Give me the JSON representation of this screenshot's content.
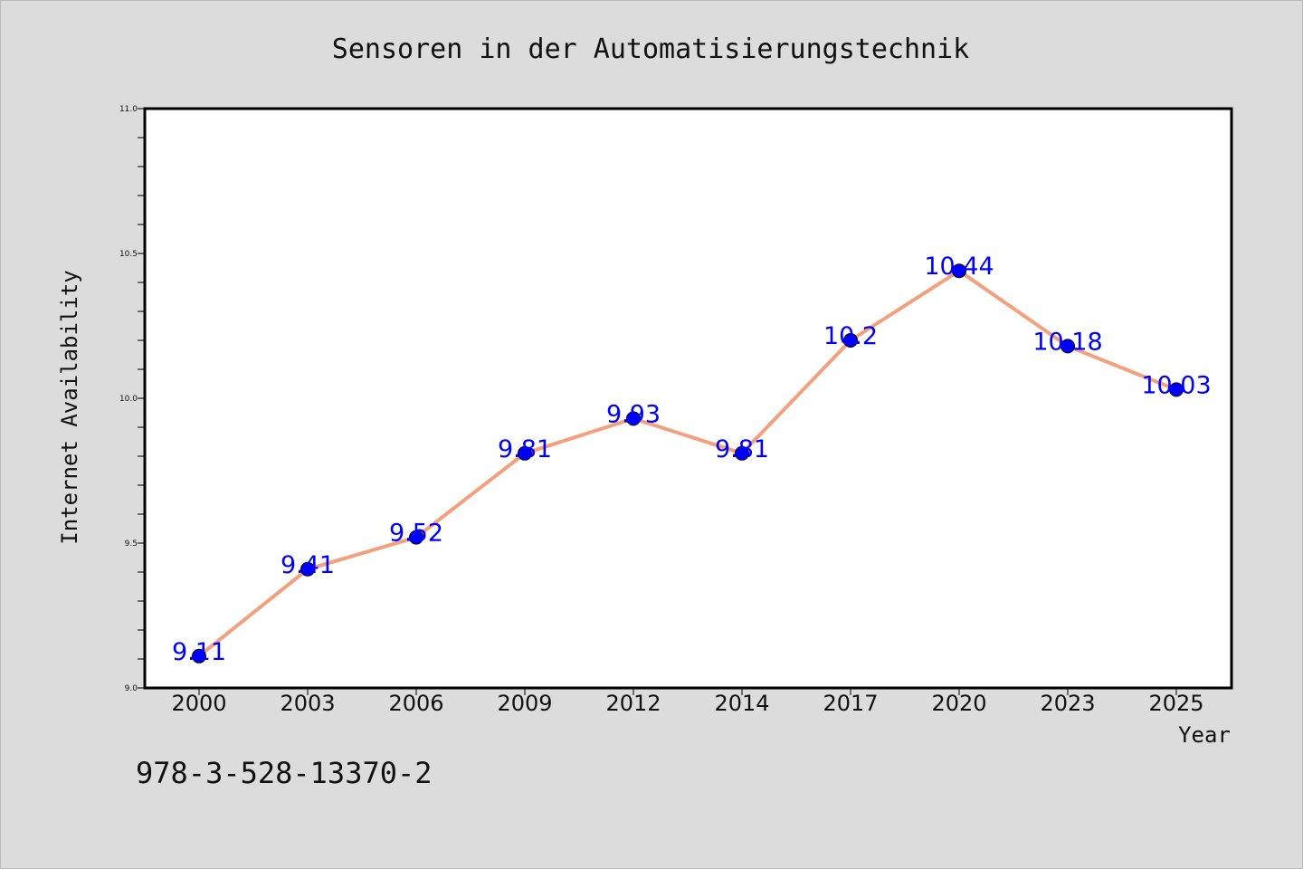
{
  "chart_data": {
    "type": "line",
    "title": "Sensoren in der Automatisierungstechnik",
    "xlabel": "Year",
    "ylabel": "Internet Availability",
    "categories": [
      "2000",
      "2003",
      "2006",
      "2009",
      "2012",
      "2014",
      "2017",
      "2020",
      "2023",
      "2025"
    ],
    "values": [
      9.11,
      9.41,
      9.52,
      9.81,
      9.93,
      9.81,
      10.2,
      10.44,
      10.18,
      10.03
    ],
    "data_labels": [
      "9.11",
      "9.41",
      "9.52",
      "9.81",
      "9.93",
      "9.81",
      "10.2",
      "10.44",
      "10.18",
      "10.03"
    ],
    "ylim": [
      9.0,
      11.0
    ],
    "yticks": [
      "9.0",
      "9.5",
      "10.0",
      "10.5",
      "11.0"
    ],
    "grid": false,
    "legend": "none",
    "line_color": "#f4a07c",
    "marker_color": "#0000ff",
    "label_color": "#0000ff"
  },
  "footer": {
    "isbn": "978-3-528-13370-2"
  }
}
